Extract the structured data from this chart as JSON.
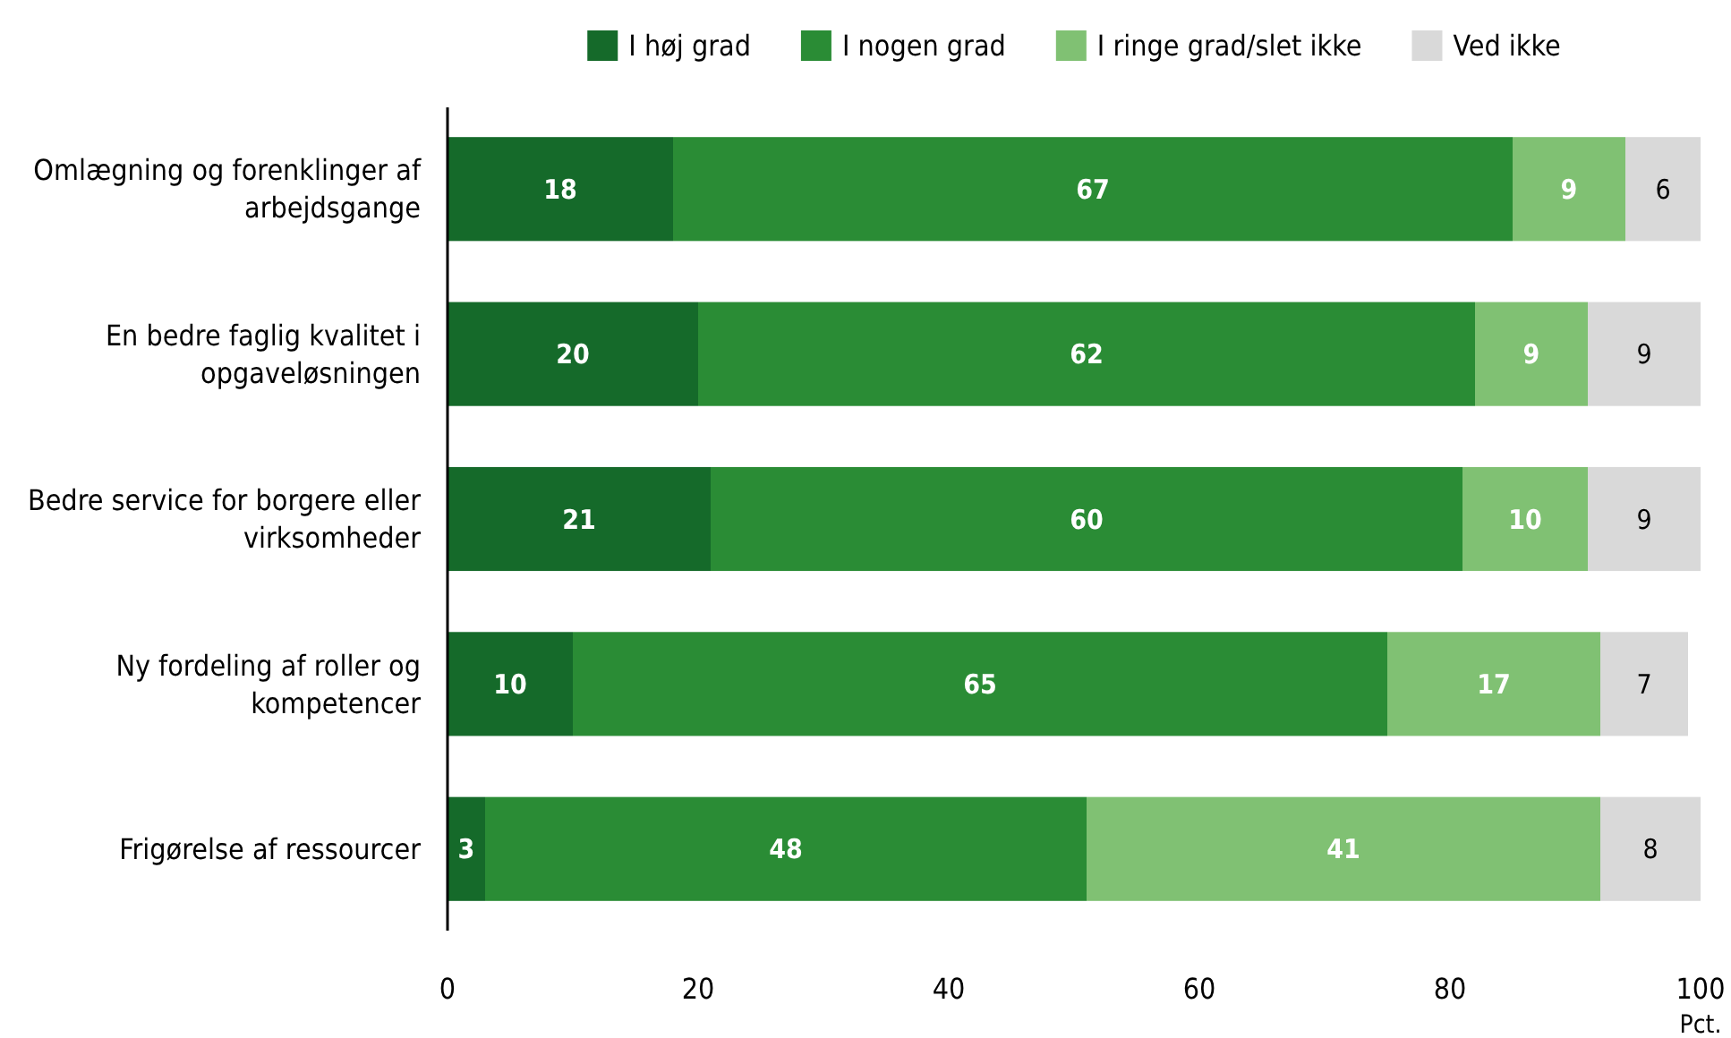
{
  "chart_data": {
    "type": "bar",
    "orientation": "horizontal",
    "stacked": true,
    "categories": [
      "Omlægning og forenklinger af arbejdsgange",
      "En bedre faglig kvalitet i opgaveløsningen",
      "Bedre service for borgere eller virksomheder",
      "Ny fordeling af roller og kompetencer",
      "Frigørelse af ressourcer"
    ],
    "series": [
      {
        "name": "I høj grad",
        "color": "#156a2a",
        "values": [
          18,
          20,
          21,
          10,
          3
        ]
      },
      {
        "name": "I nogen grad",
        "color": "#2a8c35",
        "values": [
          67,
          62,
          60,
          65,
          48
        ]
      },
      {
        "name": "I ringe grad/slet ikke",
        "color": "#80c173",
        "values": [
          9,
          9,
          10,
          17,
          41
        ]
      },
      {
        "name": "Ved ikke",
        "color": "#d9d9d9",
        "values": [
          6,
          9,
          9,
          7,
          8
        ]
      }
    ],
    "xlim": [
      0,
      100
    ],
    "xticks": [
      0,
      20,
      40,
      60,
      80,
      100
    ],
    "xlabel": "Pct.",
    "data_labels": true,
    "legend": "top",
    "grid": false
  }
}
